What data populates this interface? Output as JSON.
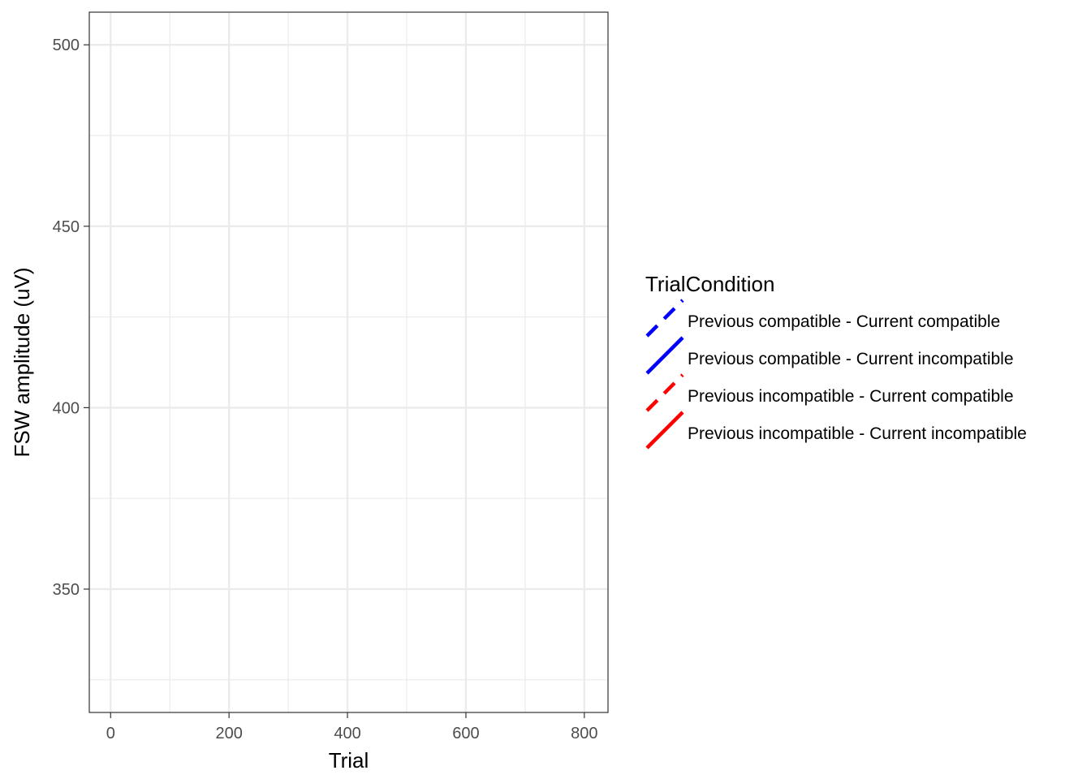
{
  "chart_data": {
    "type": "line",
    "title": "",
    "xlabel": "Trial",
    "ylabel": "FSW amplitude (uV)",
    "xlim": [
      -36,
      840
    ],
    "ylim": [
      316,
      509
    ],
    "x_ticks": [
      0,
      200,
      400,
      600,
      800
    ],
    "x_minor": [
      100,
      300,
      500,
      700
    ],
    "y_ticks": [
      350,
      400,
      450,
      500
    ],
    "y_minor": [
      325,
      375,
      425,
      475
    ],
    "x_tick_labels": [
      "0",
      "200",
      "400",
      "600",
      "800"
    ],
    "y_tick_labels": [
      "350",
      "400",
      "450",
      "500"
    ],
    "grid": true,
    "legend": {
      "title": "TrialCondition",
      "placement": "right",
      "entries": [
        {
          "label": "Previous compatible - Current compatible",
          "color": "#0000ff",
          "dash": "dashed"
        },
        {
          "label": "Previous compatible - Current incompatible",
          "color": "#0000ff",
          "dash": "solid"
        },
        {
          "label": "Previous incompatible - Current compatible",
          "color": "#ff0000",
          "dash": "dashed"
        },
        {
          "label": "Previous incompatible - Current incompatible",
          "color": "#ff0000",
          "dash": "solid"
        }
      ]
    },
    "series": []
  }
}
